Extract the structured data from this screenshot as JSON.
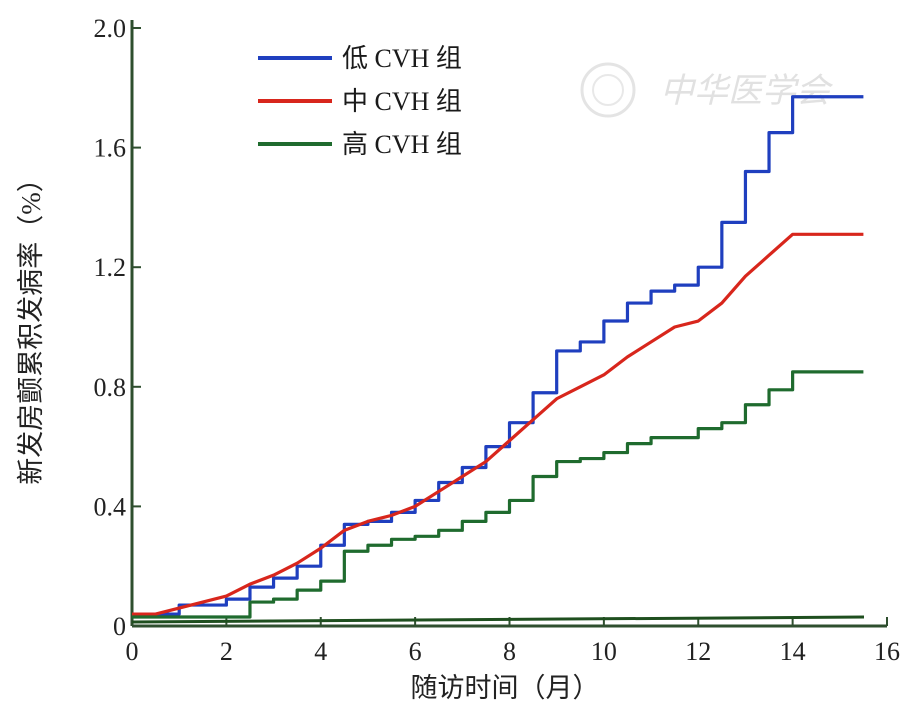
{
  "chart_data": {
    "type": "line",
    "xlabel": "随访时间（月）",
    "ylabel": "新发房颤累积发病率（%）",
    "xlim": [
      0,
      16
    ],
    "ylim": [
      0,
      2.0
    ],
    "x_ticks": [
      "0",
      "2",
      "4",
      "6",
      "8",
      "10",
      "12",
      "14",
      "16"
    ],
    "y_ticks": [
      "0",
      "0.4",
      "0.8",
      "1.2",
      "1.6",
      "2.0"
    ],
    "legend_position": "top-left",
    "grid": false,
    "series": [
      {
        "name": "低 CVH 组",
        "color": "#1f3fbf",
        "style": "step",
        "points": [
          [
            0,
            0.04
          ],
          [
            0.5,
            0.04
          ],
          [
            1.0,
            0.07
          ],
          [
            1.5,
            0.07
          ],
          [
            2.0,
            0.09
          ],
          [
            2.5,
            0.13
          ],
          [
            3.0,
            0.16
          ],
          [
            3.5,
            0.2
          ],
          [
            4.0,
            0.27
          ],
          [
            4.5,
            0.34
          ],
          [
            5.0,
            0.35
          ],
          [
            5.5,
            0.38
          ],
          [
            6.0,
            0.42
          ],
          [
            6.5,
            0.48
          ],
          [
            7.0,
            0.53
          ],
          [
            7.5,
            0.6
          ],
          [
            8.0,
            0.68
          ],
          [
            8.5,
            0.78
          ],
          [
            9.0,
            0.92
          ],
          [
            9.5,
            0.95
          ],
          [
            10.0,
            1.02
          ],
          [
            10.5,
            1.08
          ],
          [
            11.0,
            1.12
          ],
          [
            11.5,
            1.14
          ],
          [
            12.0,
            1.2
          ],
          [
            12.5,
            1.35
          ],
          [
            13.0,
            1.52
          ],
          [
            13.5,
            1.65
          ],
          [
            14.0,
            1.77
          ],
          [
            15.5,
            1.77
          ]
        ]
      },
      {
        "name": "中 CVH 组",
        "color": "#d8261c",
        "style": "line",
        "points": [
          [
            0,
            0.04
          ],
          [
            0.5,
            0.04
          ],
          [
            1.0,
            0.06
          ],
          [
            1.5,
            0.08
          ],
          [
            2.0,
            0.1
          ],
          [
            2.5,
            0.14
          ],
          [
            3.0,
            0.17
          ],
          [
            3.5,
            0.21
          ],
          [
            4.0,
            0.26
          ],
          [
            4.5,
            0.32
          ],
          [
            5.0,
            0.35
          ],
          [
            5.5,
            0.37
          ],
          [
            6.0,
            0.4
          ],
          [
            6.5,
            0.45
          ],
          [
            7.0,
            0.5
          ],
          [
            7.5,
            0.55
          ],
          [
            8.0,
            0.62
          ],
          [
            8.5,
            0.69
          ],
          [
            9.0,
            0.76
          ],
          [
            9.5,
            0.8
          ],
          [
            10.0,
            0.84
          ],
          [
            10.5,
            0.9
          ],
          [
            11.0,
            0.95
          ],
          [
            11.5,
            1.0
          ],
          [
            12.0,
            1.02
          ],
          [
            12.5,
            1.08
          ],
          [
            13.0,
            1.17
          ],
          [
            13.5,
            1.24
          ],
          [
            14.0,
            1.31
          ],
          [
            15.5,
            1.31
          ]
        ]
      },
      {
        "name": "高 CVH 组",
        "color": "#1f6b2e",
        "style": "step",
        "points": [
          [
            0,
            0.03
          ],
          [
            1.0,
            0.03
          ],
          [
            2.0,
            0.03
          ],
          [
            2.5,
            0.08
          ],
          [
            3.0,
            0.09
          ],
          [
            3.5,
            0.12
          ],
          [
            4.0,
            0.15
          ],
          [
            4.5,
            0.25
          ],
          [
            5.0,
            0.27
          ],
          [
            5.5,
            0.29
          ],
          [
            6.0,
            0.3
          ],
          [
            6.5,
            0.32
          ],
          [
            7.0,
            0.35
          ],
          [
            7.5,
            0.38
          ],
          [
            8.0,
            0.42
          ],
          [
            8.5,
            0.5
          ],
          [
            9.0,
            0.55
          ],
          [
            9.5,
            0.56
          ],
          [
            10.0,
            0.58
          ],
          [
            10.5,
            0.61
          ],
          [
            11.0,
            0.63
          ],
          [
            11.5,
            0.63
          ],
          [
            12.0,
            0.66
          ],
          [
            12.5,
            0.68
          ],
          [
            13.0,
            0.74
          ],
          [
            13.5,
            0.79
          ],
          [
            14.0,
            0.85
          ],
          [
            15.5,
            0.85
          ]
        ]
      }
    ]
  }
}
